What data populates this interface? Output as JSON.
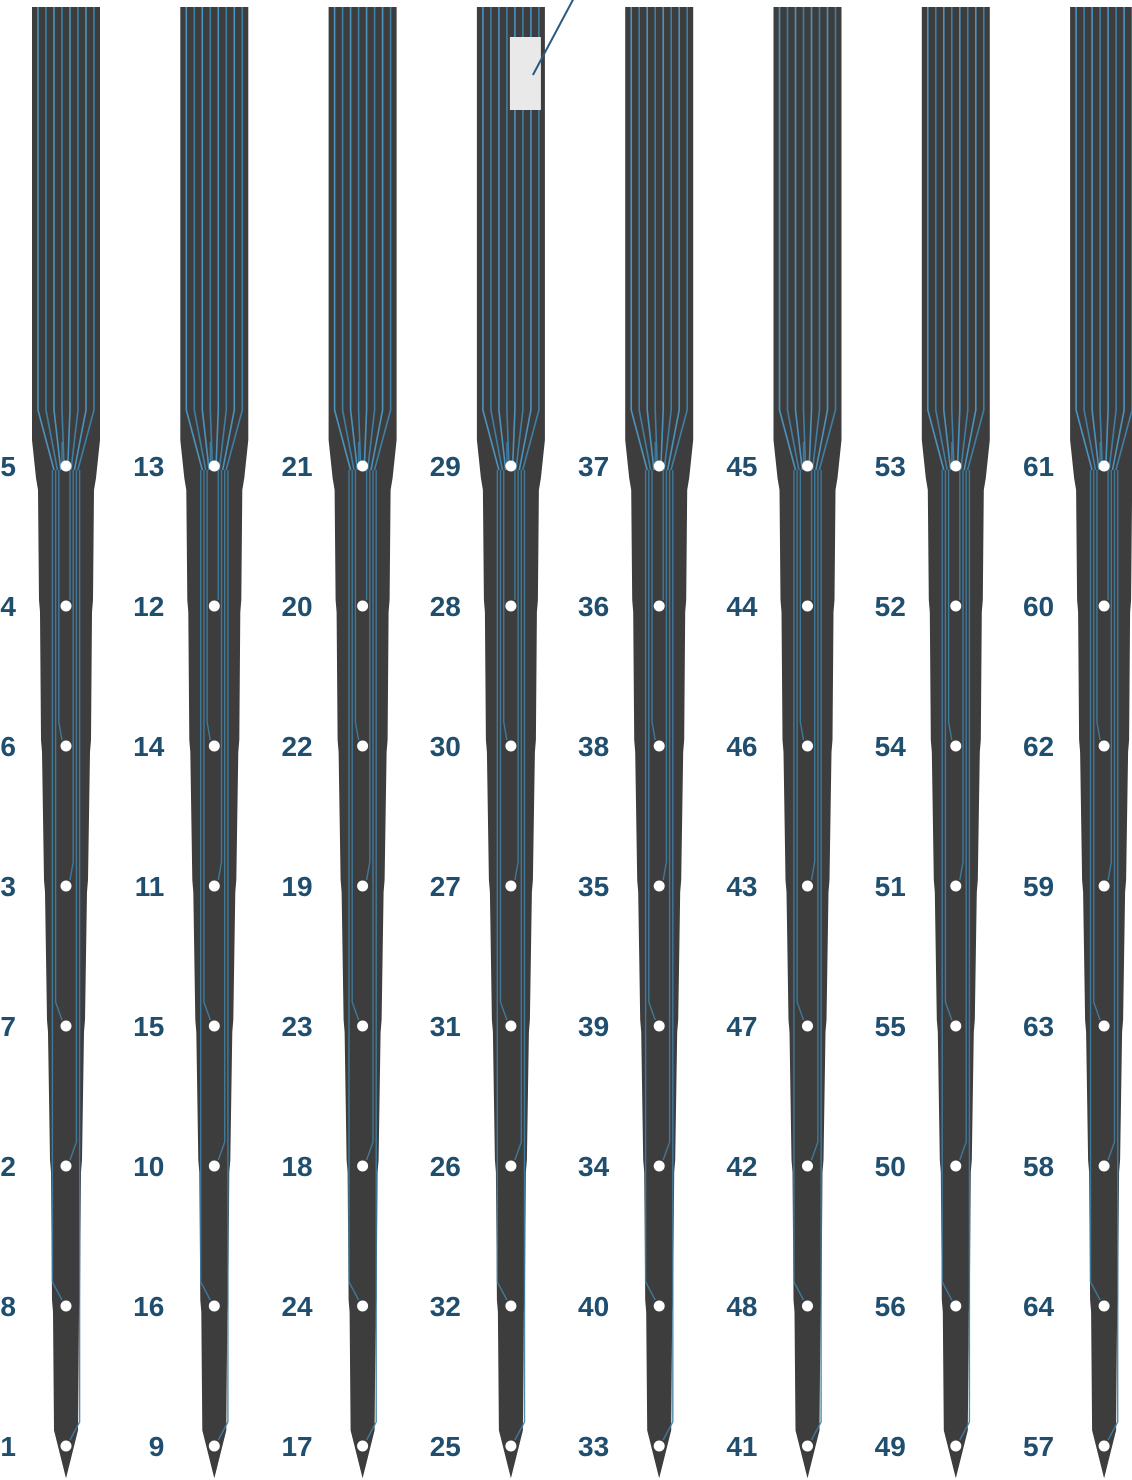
{
  "colors": {
    "background": "#ffffff",
    "shank": "#3d3d3e",
    "trace": "#3f7fa3",
    "trace_bright": "#4b93bd",
    "site": "#ffffff",
    "label": "#1f4e6e",
    "reference_pad": "#e9e9ea",
    "pointer_line": "#2a5a80"
  },
  "shanks": [
    {
      "id": "shank-1",
      "sites": [
        5,
        4,
        6,
        3,
        7,
        2,
        8,
        1
      ]
    },
    {
      "id": "shank-2",
      "sites": [
        13,
        12,
        14,
        11,
        15,
        10,
        16,
        9
      ]
    },
    {
      "id": "shank-3",
      "sites": [
        21,
        20,
        22,
        19,
        23,
        18,
        24,
        17
      ]
    },
    {
      "id": "shank-4",
      "sites": [
        29,
        28,
        30,
        27,
        31,
        26,
        32,
        25
      ]
    },
    {
      "id": "shank-5",
      "sites": [
        37,
        36,
        38,
        35,
        39,
        34,
        40,
        33
      ]
    },
    {
      "id": "shank-6",
      "sites": [
        45,
        44,
        46,
        43,
        47,
        42,
        48,
        41
      ]
    },
    {
      "id": "shank-7",
      "sites": [
        53,
        52,
        54,
        51,
        55,
        50,
        56,
        49
      ]
    },
    {
      "id": "shank-8",
      "sites": [
        61,
        60,
        62,
        59,
        63,
        58,
        64,
        57
      ]
    }
  ],
  "reference_pad": {
    "shank_index": 3,
    "icon": "reference-electrode-pad"
  },
  "icons": [
    "recording-site-dot",
    "probe-tip",
    "pointer-line"
  ]
}
